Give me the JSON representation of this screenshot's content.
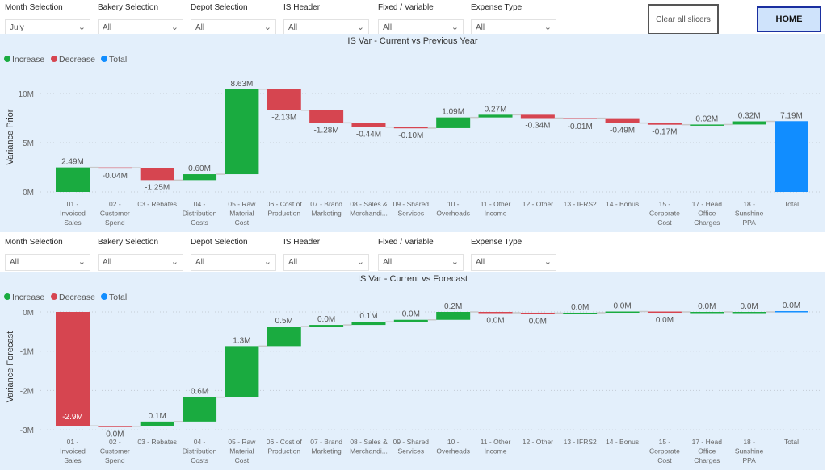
{
  "slicers_top": [
    {
      "label": "Month Selection",
      "value": "July"
    },
    {
      "label": "Bakery Selection",
      "value": "All"
    },
    {
      "label": "Depot Selection",
      "value": "All"
    },
    {
      "label": "IS Header",
      "value": "All"
    },
    {
      "label": "Fixed / Variable",
      "value": "All"
    },
    {
      "label": "Expense Type",
      "value": "All"
    }
  ],
  "slicers_bottom": [
    {
      "label": "Month Selection",
      "value": "All"
    },
    {
      "label": "Bakery Selection",
      "value": "All"
    },
    {
      "label": "Depot Selection",
      "value": "All"
    },
    {
      "label": "IS Header",
      "value": "All"
    },
    {
      "label": "Fixed / Variable",
      "value": "All"
    },
    {
      "label": "Expense Type",
      "value": "All"
    }
  ],
  "buttons": {
    "clear": "Clear all slicers",
    "home": "HOME"
  },
  "colors": {
    "increase": "#1aab40",
    "decrease": "#d64550",
    "total": "#118dff",
    "panel": "#e3effb"
  },
  "chart_data": [
    {
      "type": "waterfall",
      "title": "IS Var - Current vs Previous Year",
      "ylabel": "Variance Prior",
      "legend": [
        "Increase",
        "Decrease",
        "Total"
      ],
      "legend_position": "top-left",
      "yticks": [
        {
          "v": 0,
          "label": "0M"
        },
        {
          "v": 5,
          "label": "5M"
        },
        {
          "v": 10,
          "label": "10M"
        }
      ],
      "ylim": [
        0,
        10.5
      ],
      "categories": [
        [
          "01 -",
          "Invoiced",
          "Sales"
        ],
        [
          "02 -",
          "Customer",
          "Spend"
        ],
        [
          "03 - Rebates"
        ],
        [
          "04 -",
          "Distribution",
          "Costs"
        ],
        [
          "05 - Raw",
          "Material",
          "Cost"
        ],
        [
          "06 - Cost of",
          "Production"
        ],
        [
          "07 - Brand",
          "Marketing"
        ],
        [
          "08 - Sales &",
          "Merchandi..."
        ],
        [
          "09 - Shared",
          "Services"
        ],
        [
          "10 -",
          "Overheads"
        ],
        [
          "11 - Other",
          "Income"
        ],
        [
          "12 - Other"
        ],
        [
          "13 - IFRS2"
        ],
        [
          "14 - Bonus"
        ],
        [
          "15 -",
          "Corporate",
          "Cost"
        ],
        [
          "17 - Head",
          "Office",
          "Charges"
        ],
        [
          "18 -",
          "Sunshine",
          "PPA"
        ],
        [
          "Total"
        ]
      ],
      "values": [
        2.49,
        -0.04,
        -1.25,
        0.6,
        8.63,
        -2.13,
        -1.28,
        -0.44,
        -0.1,
        1.09,
        0.27,
        -0.34,
        -0.01,
        -0.49,
        -0.17,
        0.02,
        0.32,
        7.19
      ],
      "labels": [
        "2.49M",
        "-0.04M",
        "-1.25M",
        "0.60M",
        "8.63M",
        "-2.13M",
        "-1.28M",
        "-0.44M",
        "-0.10M",
        "1.09M",
        "0.27M",
        "-0.34M",
        "-0.01M",
        "-0.49M",
        "-0.17M",
        "0.02M",
        "0.32M",
        "7.19M"
      ]
    },
    {
      "type": "waterfall",
      "title": "IS Var - Current vs Forecast",
      "ylabel": "Variance Forecast",
      "legend": [
        "Increase",
        "Decrease",
        "Total"
      ],
      "legend_position": "top-left",
      "yticks": [
        {
          "v": 0,
          "label": "0M"
        },
        {
          "v": -1,
          "label": "-1M"
        },
        {
          "v": -2,
          "label": "-2M"
        },
        {
          "v": -3,
          "label": "-3M"
        }
      ],
      "ylim": [
        -3,
        0
      ],
      "categories": [
        [
          "01 -",
          "Invoiced",
          "Sales"
        ],
        [
          "02 -",
          "Customer",
          "Spend"
        ],
        [
          "03 - Rebates"
        ],
        [
          "04 -",
          "Distribution",
          "Costs"
        ],
        [
          "05 - Raw",
          "Material",
          "Cost"
        ],
        [
          "06 - Cost of",
          "Production"
        ],
        [
          "07 - Brand",
          "Marketing"
        ],
        [
          "08 - Sales &",
          "Merchandi..."
        ],
        [
          "09 - Shared",
          "Services"
        ],
        [
          "10 -",
          "Overheads"
        ],
        [
          "11 - Other",
          "Income"
        ],
        [
          "12 - Other"
        ],
        [
          "13 - IFRS2"
        ],
        [
          "14 - Bonus"
        ],
        [
          "15 -",
          "Corporate",
          "Cost"
        ],
        [
          "17 - Head",
          "Office",
          "Charges"
        ],
        [
          "18 -",
          "Sunshine",
          "PPA"
        ],
        [
          "Total"
        ]
      ],
      "values": [
        -2.9,
        -0.01,
        0.12,
        0.62,
        1.3,
        0.5,
        0.04,
        0.08,
        0.05,
        0.2,
        -0.02,
        -0.01,
        0.01,
        0.03,
        -0.01,
        0.0,
        0.0,
        0.02
      ],
      "labels": [
        "-2.9M",
        "0.0M",
        "0.1M",
        "0.6M",
        "1.3M",
        "0.5M",
        "0.0M",
        "0.1M",
        "0.0M",
        "0.2M",
        "0.0M",
        "0.0M",
        "0.0M",
        "0.0M",
        "0.0M",
        "0.0M",
        "0.0M",
        "0.0M"
      ]
    }
  ]
}
